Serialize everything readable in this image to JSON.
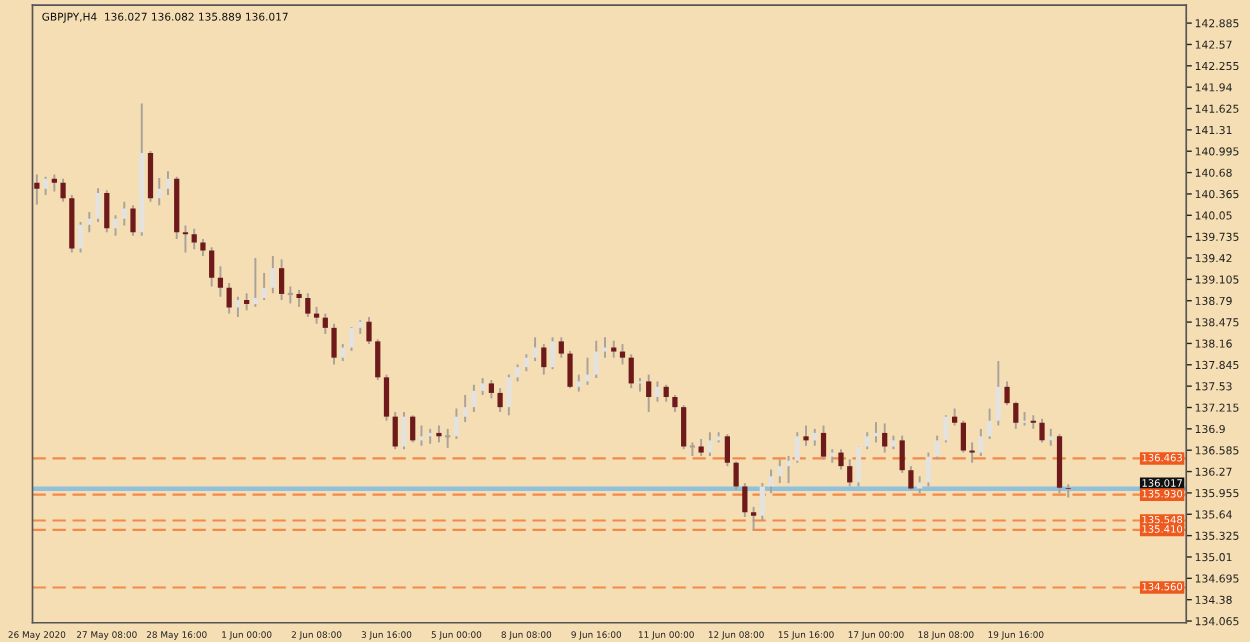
{
  "chart_data": {
    "type": "candlestick",
    "title": "GBPJPY,H4  136.027 136.082 135.889 136.017",
    "categories": [
      "26 May 2020",
      null,
      null,
      null,
      null,
      null,
      null,
      null,
      "27 May 08:00",
      null,
      null,
      null,
      null,
      null,
      null,
      null,
      "28 May 16:00",
      null,
      null,
      null,
      null,
      null,
      null,
      null,
      "1 Jun 00:00",
      null,
      null,
      null,
      null,
      null,
      null,
      null,
      "2 Jun 08:00",
      null,
      null,
      null,
      null,
      null,
      null,
      null,
      "3 Jun 16:00",
      null,
      null,
      null,
      null,
      null,
      null,
      null,
      "5 Jun 00:00",
      null,
      null,
      null,
      null,
      null,
      null,
      null,
      "8 Jun 08:00",
      null,
      null,
      null,
      null,
      null,
      null,
      null,
      "9 Jun 16:00",
      null,
      null,
      null,
      null,
      null,
      null,
      null,
      "11 Jun 00:00",
      null,
      null,
      null,
      null,
      null,
      null,
      null,
      "12 Jun 08:00",
      null,
      null,
      null,
      null,
      null,
      null,
      null,
      "15 Jun 16:00",
      null,
      null,
      null,
      null,
      null,
      null,
      null,
      "17 Jun 00:00",
      null,
      null,
      null,
      null,
      null,
      null,
      null,
      "18 Jun 08:00",
      null,
      null,
      null,
      null,
      null,
      null,
      null,
      "19 Jun 16:00",
      null,
      null,
      null,
      null,
      null,
      null,
      null,
      null,
      null,
      null,
      null,
      null,
      null,
      null,
      null,
      null,
      null,
      null,
      null
    ],
    "ohlc": [
      [
        140.53,
        140.65,
        140.21,
        140.44
      ],
      [
        140.44,
        140.62,
        140.35,
        140.59
      ],
      [
        140.59,
        140.65,
        140.4,
        140.53
      ],
      [
        140.53,
        140.59,
        140.25,
        140.3
      ],
      [
        140.3,
        140.35,
        139.5,
        139.56
      ],
      [
        139.56,
        139.95,
        139.5,
        139.91
      ],
      [
        139.91,
        140.1,
        139.8,
        140.0
      ],
      [
        140.0,
        140.45,
        139.95,
        140.38
      ],
      [
        140.38,
        140.42,
        139.8,
        139.86
      ],
      [
        139.86,
        140.05,
        139.75,
        140.0
      ],
      [
        140.0,
        140.25,
        139.9,
        140.15
      ],
      [
        140.15,
        140.2,
        139.75,
        139.8
      ],
      [
        139.8,
        141.7,
        139.75,
        140.97
      ],
      [
        140.97,
        141.0,
        140.25,
        140.3
      ],
      [
        140.3,
        140.6,
        140.2,
        140.44
      ],
      [
        140.44,
        140.7,
        140.35,
        140.59
      ],
      [
        140.59,
        140.62,
        139.7,
        139.8
      ],
      [
        139.8,
        139.9,
        139.5,
        139.77
      ],
      [
        139.77,
        139.85,
        139.55,
        139.65
      ],
      [
        139.65,
        139.7,
        139.45,
        139.53
      ],
      [
        139.53,
        139.58,
        139.0,
        139.13
      ],
      [
        139.13,
        139.3,
        138.85,
        138.98
      ],
      [
        138.98,
        139.05,
        138.6,
        138.69
      ],
      [
        138.69,
        138.85,
        138.55,
        138.8
      ],
      [
        138.8,
        138.9,
        138.65,
        138.74
      ],
      [
        138.74,
        139.42,
        138.7,
        138.83
      ],
      [
        138.83,
        139.2,
        138.8,
        138.98
      ],
      [
        138.98,
        139.45,
        138.9,
        139.27
      ],
      [
        139.27,
        139.4,
        138.8,
        138.89
      ],
      [
        138.89,
        139.0,
        138.75,
        138.89
      ],
      [
        138.89,
        138.95,
        138.7,
        138.83
      ],
      [
        138.83,
        138.9,
        138.55,
        138.6
      ],
      [
        138.6,
        138.7,
        138.45,
        138.54
      ],
      [
        138.54,
        138.6,
        138.3,
        138.39
      ],
      [
        138.39,
        138.45,
        137.85,
        137.95
      ],
      [
        137.95,
        138.15,
        137.9,
        138.1
      ],
      [
        138.1,
        138.4,
        138.05,
        138.39
      ],
      [
        138.39,
        138.5,
        138.3,
        138.48
      ],
      [
        138.48,
        138.55,
        138.15,
        138.19
      ],
      [
        138.19,
        138.22,
        137.62,
        137.66
      ],
      [
        137.66,
        137.7,
        137.02,
        137.08
      ],
      [
        137.08,
        137.15,
        136.6,
        136.64
      ],
      [
        136.64,
        137.15,
        136.6,
        137.08
      ],
      [
        137.08,
        137.1,
        136.7,
        136.73
      ],
      [
        136.73,
        136.95,
        136.65,
        136.79
      ],
      [
        136.79,
        136.9,
        136.68,
        136.84
      ],
      [
        136.84,
        136.95,
        136.7,
        136.79
      ],
      [
        136.79,
        136.9,
        136.62,
        136.79
      ],
      [
        136.79,
        137.2,
        136.75,
        137.08
      ],
      [
        137.08,
        137.4,
        137.0,
        137.22
      ],
      [
        137.22,
        137.55,
        137.15,
        137.46
      ],
      [
        137.46,
        137.65,
        137.4,
        137.57
      ],
      [
        137.57,
        137.62,
        137.35,
        137.43
      ],
      [
        137.43,
        137.5,
        137.15,
        137.22
      ],
      [
        137.22,
        137.7,
        137.1,
        137.66
      ],
      [
        137.66,
        137.85,
        137.6,
        137.81
      ],
      [
        137.81,
        138.0,
        137.75,
        137.95
      ],
      [
        137.95,
        138.25,
        137.9,
        138.1
      ],
      [
        138.1,
        138.15,
        137.7,
        137.81
      ],
      [
        137.81,
        138.25,
        137.78,
        138.19
      ],
      [
        138.19,
        138.25,
        137.95,
        138.01
      ],
      [
        138.01,
        138.05,
        137.5,
        137.52
      ],
      [
        137.52,
        137.7,
        137.45,
        137.6
      ],
      [
        137.6,
        137.95,
        137.55,
        137.7
      ],
      [
        137.7,
        138.2,
        137.65,
        138.04
      ],
      [
        138.04,
        138.25,
        137.95,
        138.1
      ],
      [
        138.1,
        138.2,
        137.95,
        138.04
      ],
      [
        138.04,
        138.15,
        137.85,
        137.95
      ],
      [
        137.95,
        138.0,
        137.5,
        137.57
      ],
      [
        137.57,
        137.65,
        137.45,
        137.6
      ],
      [
        137.6,
        137.7,
        137.15,
        137.37
      ],
      [
        137.37,
        137.6,
        137.3,
        137.52
      ],
      [
        137.52,
        137.55,
        137.3,
        137.37
      ],
      [
        137.37,
        137.4,
        137.15,
        137.22
      ],
      [
        137.22,
        137.25,
        136.6,
        136.64
      ],
      [
        136.64,
        136.7,
        136.5,
        136.64
      ],
      [
        136.64,
        136.75,
        136.5,
        136.55
      ],
      [
        136.55,
        136.85,
        136.5,
        136.73
      ],
      [
        136.73,
        136.85,
        136.7,
        136.79
      ],
      [
        136.79,
        136.82,
        136.35,
        136.4
      ],
      [
        136.4,
        136.42,
        136.0,
        136.05
      ],
      [
        136.05,
        136.1,
        135.6,
        135.67
      ],
      [
        135.67,
        135.75,
        135.41,
        135.62
      ],
      [
        135.62,
        136.1,
        135.55,
        136.05
      ],
      [
        136.05,
        136.3,
        135.95,
        136.2
      ],
      [
        136.2,
        136.45,
        136.1,
        136.35
      ],
      [
        136.35,
        136.5,
        136.1,
        136.43
      ],
      [
        136.43,
        136.85,
        136.4,
        136.79
      ],
      [
        136.79,
        136.95,
        136.65,
        136.73
      ],
      [
        136.73,
        136.9,
        136.65,
        136.84
      ],
      [
        136.84,
        136.95,
        136.45,
        136.49
      ],
      [
        136.49,
        136.6,
        136.4,
        136.55
      ],
      [
        136.55,
        136.6,
        136.3,
        136.35
      ],
      [
        136.35,
        136.45,
        136.05,
        136.11
      ],
      [
        136.11,
        136.64,
        136.05,
        136.64
      ],
      [
        136.64,
        136.85,
        136.6,
        136.79
      ],
      [
        136.79,
        137.0,
        136.7,
        136.84
      ],
      [
        136.84,
        136.98,
        136.55,
        136.64
      ],
      [
        136.64,
        136.8,
        136.6,
        136.73
      ],
      [
        136.73,
        136.8,
        136.25,
        136.29
      ],
      [
        136.29,
        136.35,
        136.0,
        136.02
      ],
      [
        136.02,
        136.2,
        135.95,
        136.11
      ],
      [
        136.11,
        136.55,
        136.05,
        136.49
      ],
      [
        136.49,
        136.8,
        136.45,
        136.73
      ],
      [
        136.73,
        137.1,
        136.7,
        137.08
      ],
      [
        137.08,
        137.2,
        136.95,
        136.99
      ],
      [
        136.99,
        137.02,
        136.55,
        136.58
      ],
      [
        136.58,
        136.7,
        136.4,
        136.55
      ],
      [
        136.55,
        136.9,
        136.5,
        136.79
      ],
      [
        136.79,
        137.2,
        136.75,
        137.02
      ],
      [
        137.02,
        137.9,
        136.95,
        137.52
      ],
      [
        137.52,
        137.6,
        137.25,
        137.28
      ],
      [
        137.28,
        137.3,
        136.9,
        136.99
      ],
      [
        136.99,
        137.15,
        136.95,
        137.02
      ],
      [
        137.02,
        137.1,
        136.9,
        136.99
      ],
      [
        136.99,
        137.05,
        136.7,
        136.73
      ],
      [
        136.73,
        136.9,
        136.65,
        136.79
      ],
      [
        136.79,
        136.82,
        135.95,
        136.03
      ],
      [
        136.027,
        136.082,
        135.889,
        136.017
      ],
      null,
      null,
      null,
      null,
      null,
      null,
      null,
      null,
      null,
      null,
      null,
      null,
      null
    ],
    "ylim": [
      134.04,
      143.15
    ],
    "yticks": [
      134.065,
      134.38,
      134.695,
      135.01,
      135.325,
      135.64,
      135.955,
      136.27,
      136.585,
      136.9,
      137.215,
      137.53,
      137.845,
      138.16,
      138.475,
      138.79,
      139.105,
      139.42,
      139.735,
      140.05,
      140.365,
      140.68,
      140.995,
      141.31,
      141.625,
      141.94,
      142.255,
      142.57,
      142.885
    ],
    "ref_lines": [
      {
        "axis": "y",
        "value": 136.463,
        "label": "136.463",
        "color": "#f28a4b",
        "line_style": "dashed"
      },
      {
        "axis": "y",
        "value": 136.017,
        "label": "136.017",
        "color": "#8fc1dc",
        "line_style": "solid"
      },
      {
        "axis": "y",
        "value": 135.93,
        "label": "135.930",
        "color": "#f28a4b",
        "line_style": "dashed"
      },
      {
        "axis": "y",
        "value": 135.548,
        "label": "135.548",
        "color": "#f28a4b",
        "line_style": "dashed"
      },
      {
        "axis": "y",
        "value": 135.41,
        "label": "135.410",
        "color": "#f28a4b",
        "line_style": "dashed"
      },
      {
        "axis": "y",
        "value": 134.56,
        "label": "134.560",
        "color": "#f28a4b",
        "line_style": "dashed"
      }
    ],
    "grid": false,
    "legend": false
  }
}
